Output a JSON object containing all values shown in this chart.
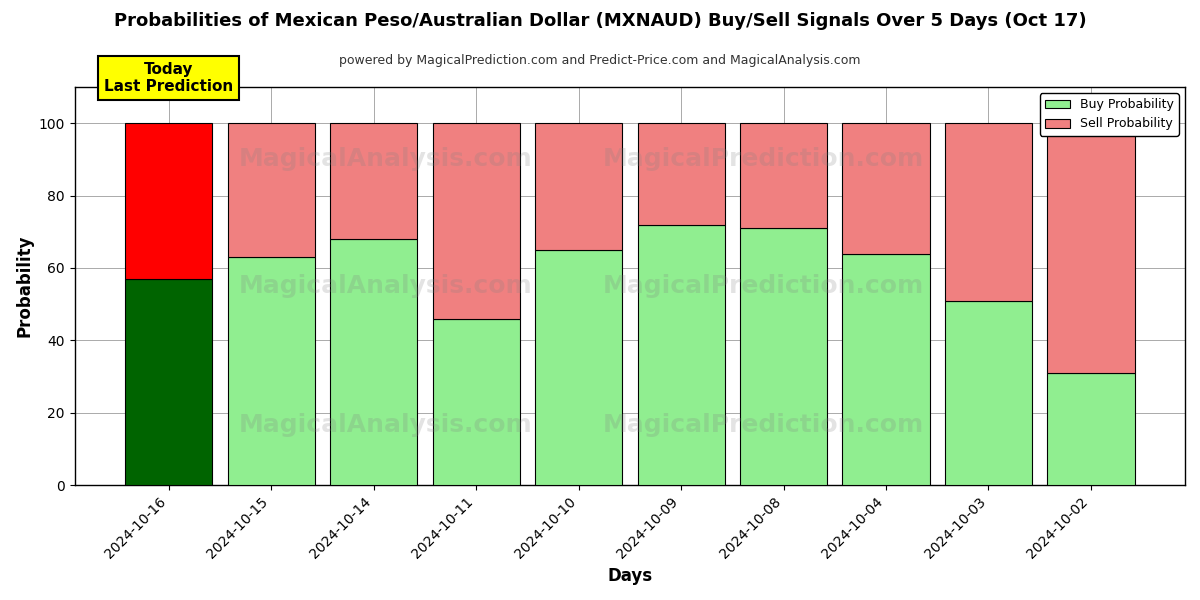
{
  "title": "Probabilities of Mexican Peso/Australian Dollar (MXNAUD) Buy/Sell Signals Over 5 Days (Oct 17)",
  "subtitle": "powered by MagicalPrediction.com and Predict-Price.com and MagicalAnalysis.com",
  "xlabel": "Days",
  "ylabel": "Probability",
  "dates": [
    "2024-10-16",
    "2024-10-15",
    "2024-10-14",
    "2024-10-11",
    "2024-10-10",
    "2024-10-09",
    "2024-10-08",
    "2024-10-04",
    "2024-10-03",
    "2024-10-02"
  ],
  "buy_values": [
    57,
    63,
    68,
    46,
    65,
    72,
    71,
    64,
    51,
    31
  ],
  "sell_values": [
    43,
    37,
    32,
    54,
    35,
    28,
    29,
    36,
    49,
    69
  ],
  "today_buy_color": "#006400",
  "today_sell_color": "#FF0000",
  "buy_color": "#90EE90",
  "sell_color": "#F08080",
  "today_annotation": "Today\nLast Prediction",
  "ylim": [
    0,
    110
  ],
  "yticks": [
    0,
    20,
    40,
    60,
    80,
    100
  ],
  "dashed_line_y": 110,
  "legend_buy_label": "Buy Probability",
  "legend_sell_label": "Sell Probability",
  "background_color": "#ffffff",
  "grid_color": "#aaaaaa",
  "bar_width": 0.85,
  "figsize": [
    12.0,
    6.0
  ],
  "dpi": 100
}
